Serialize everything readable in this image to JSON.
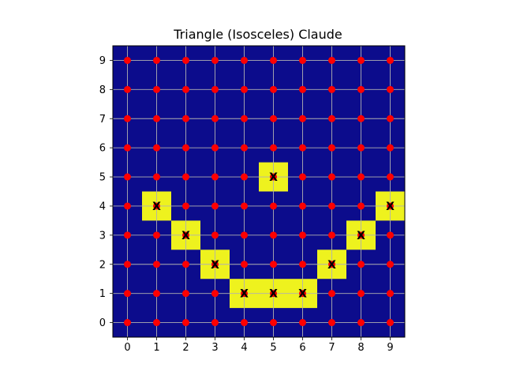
{
  "chart_data": {
    "type": "heatmap",
    "title": "Triangle (Isosceles) Claude",
    "xlabel": "",
    "ylabel": "",
    "xlim": [
      -0.5,
      9.5
    ],
    "ylim": [
      -0.5,
      9.5
    ],
    "x_ticks": [
      0,
      1,
      2,
      3,
      4,
      5,
      6,
      7,
      8,
      9
    ],
    "y_ticks": [
      0,
      1,
      2,
      3,
      4,
      5,
      6,
      7,
      8,
      9
    ],
    "grid": true,
    "colors": {
      "background": "#0c0c8c",
      "highlight": "#eef21e",
      "point": "#ff0000",
      "grid": "#b0b0b0"
    },
    "grid_points": {
      "x": [
        0,
        1,
        2,
        3,
        4,
        5,
        6,
        7,
        8,
        9
      ],
      "y": [
        0,
        1,
        2,
        3,
        4,
        5,
        6,
        7,
        8,
        9
      ]
    },
    "highlighted_cells": [
      {
        "x": 5,
        "y": 5,
        "label": "X"
      },
      {
        "x": 1,
        "y": 4,
        "label": "X"
      },
      {
        "x": 9,
        "y": 4,
        "label": "X"
      },
      {
        "x": 2,
        "y": 3,
        "label": "X"
      },
      {
        "x": 8,
        "y": 3,
        "label": "X"
      },
      {
        "x": 3,
        "y": 2,
        "label": "X"
      },
      {
        "x": 7,
        "y": 2,
        "label": "X"
      },
      {
        "x": 4,
        "y": 1,
        "label": "X"
      },
      {
        "x": 5,
        "y": 1,
        "label": "X"
      },
      {
        "x": 6,
        "y": 1,
        "label": "X"
      }
    ]
  }
}
